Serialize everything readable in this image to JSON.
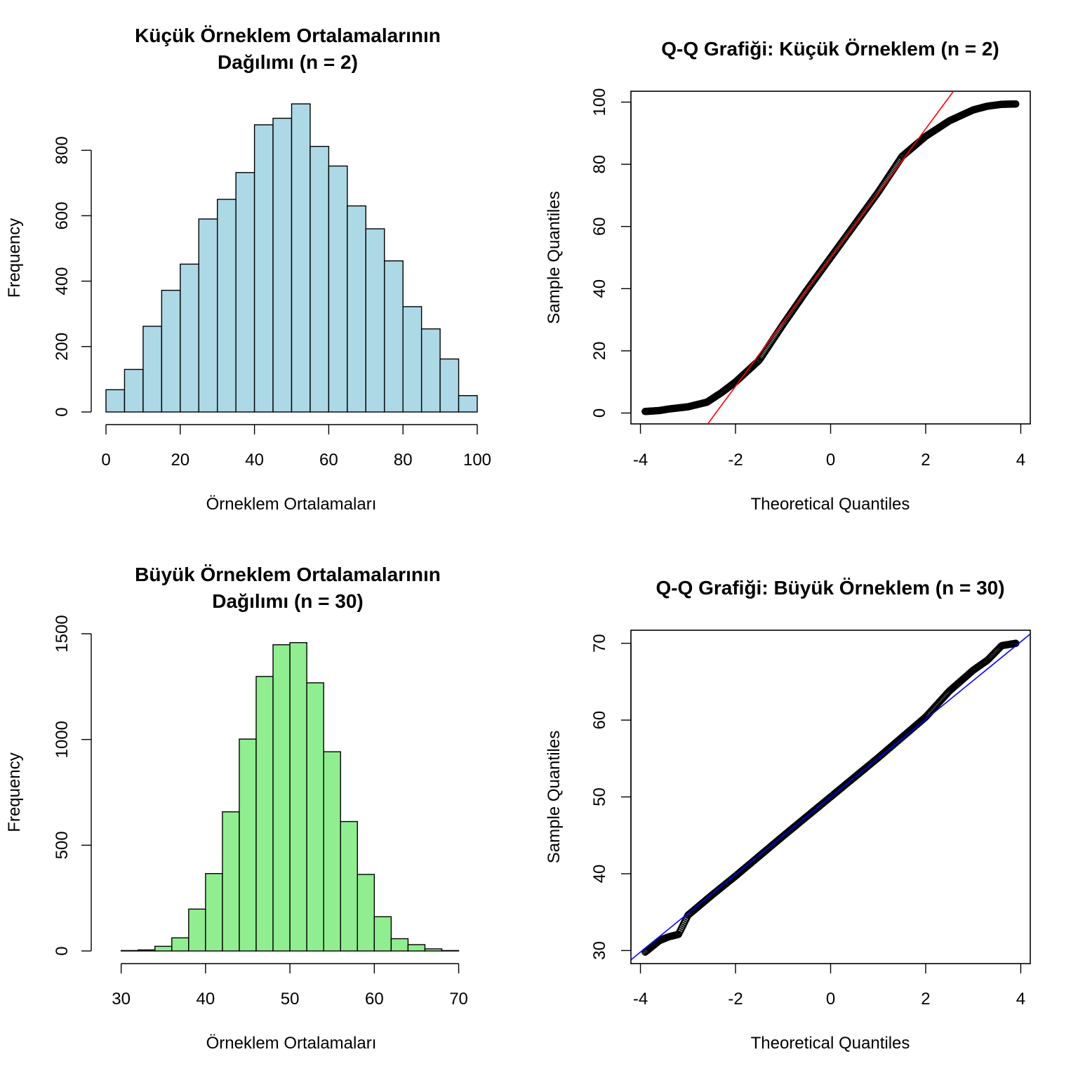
{
  "chart_data": [
    {
      "type": "bar",
      "title": [
        "Küçük Örneklem Ortalamalarının",
        "Dağılımı (n = 2)"
      ],
      "xlabel": "Örneklem Ortalamaları",
      "ylabel": "Frequency",
      "bar_color": "#ADD8E6",
      "bin_width": 5,
      "bin_start": 0,
      "values": [
        68,
        130,
        262,
        372,
        452,
        590,
        650,
        732,
        878,
        898,
        942,
        812,
        752,
        630,
        560,
        462,
        322,
        254,
        162,
        50
      ],
      "xticks": [
        0,
        20,
        40,
        60,
        80,
        100
      ],
      "yticks": [
        0,
        200,
        400,
        600,
        800
      ],
      "xlim": [
        0,
        100
      ],
      "ylim": [
        0,
        942
      ]
    },
    {
      "type": "scatter",
      "title": [
        "Q-Q Grafiği: Küçük Örneklem (n = 2)"
      ],
      "xlabel": "Theoretical Quantiles",
      "ylabel": "Sample Quantiles",
      "line_color": "#FF0000",
      "reference_line": {
        "intercept": 50,
        "slope": 20.7
      },
      "quantile_curve": [
        [
          -3.9,
          0.5
        ],
        [
          -3.6,
          0.8
        ],
        [
          -3.4,
          1.3
        ],
        [
          -3.0,
          2.0
        ],
        [
          -2.6,
          3.5
        ],
        [
          -2.3,
          6.5
        ],
        [
          -2.0,
          10.0
        ],
        [
          -1.5,
          17.0
        ],
        [
          -1.0,
          28.5
        ],
        [
          -0.5,
          39.5
        ],
        [
          0,
          50.0
        ],
        [
          0.5,
          60.5
        ],
        [
          1.0,
          71.0
        ],
        [
          1.5,
          82.5
        ],
        [
          2.0,
          89.0
        ],
        [
          2.5,
          94.0
        ],
        [
          3.0,
          97.5
        ],
        [
          3.3,
          98.7
        ],
        [
          3.6,
          99.3
        ],
        [
          3.9,
          99.4
        ]
      ],
      "xticks": [
        -4,
        -2,
        0,
        2,
        4
      ],
      "yticks": [
        0,
        20,
        40,
        60,
        80,
        100
      ],
      "xlim": [
        -4.2,
        4.2
      ],
      "ylim": [
        -3.5,
        103.5
      ]
    },
    {
      "type": "bar",
      "title": [
        "Büyük Örneklem Ortalamalarının",
        "Dağılımı (n = 30)"
      ],
      "xlabel": "Örneklem Ortalamaları",
      "ylabel": "Frequency",
      "bar_color": "#90EE90",
      "bin_width": 2,
      "bin_start": 30,
      "values": [
        2,
        5,
        22,
        62,
        198,
        366,
        658,
        1002,
        1298,
        1448,
        1458,
        1268,
        942,
        612,
        362,
        162,
        58,
        30,
        10,
        2
      ],
      "xticks": [
        30,
        40,
        50,
        60,
        70
      ],
      "yticks": [
        0,
        500,
        1000,
        1500
      ],
      "xlim": [
        28.2,
        72.2
      ],
      "ylim": [
        0,
        1500
      ]
    },
    {
      "type": "scatter",
      "title": [
        "Q-Q Grafiği: Büyük Örneklem (n = 30)"
      ],
      "xlabel": "Theoretical Quantiles",
      "ylabel": "Sample Quantiles",
      "line_color": "#0000FF",
      "reference_line": {
        "intercept": 50,
        "slope": 5.05
      },
      "quantile_curve": [
        [
          -3.9,
          29.8
        ],
        [
          -3.6,
          31.3
        ],
        [
          -3.4,
          31.8
        ],
        [
          -3.2,
          32.1
        ],
        [
          -3.0,
          34.6
        ],
        [
          -2.5,
          37.2
        ],
        [
          -2.0,
          39.7
        ],
        [
          -1.0,
          44.9
        ],
        [
          0,
          50.0
        ],
        [
          1.0,
          55.1
        ],
        [
          2.0,
          60.4
        ],
        [
          2.5,
          63.8
        ],
        [
          3.0,
          66.5
        ],
        [
          3.3,
          67.8
        ],
        [
          3.6,
          69.7
        ],
        [
          3.9,
          70.0
        ]
      ],
      "xticks": [
        -4,
        -2,
        0,
        2,
        4
      ],
      "yticks": [
        30,
        40,
        50,
        60,
        70
      ],
      "xlim": [
        -4.2,
        4.2
      ],
      "ylim": [
        28.3,
        71.7
      ]
    }
  ]
}
